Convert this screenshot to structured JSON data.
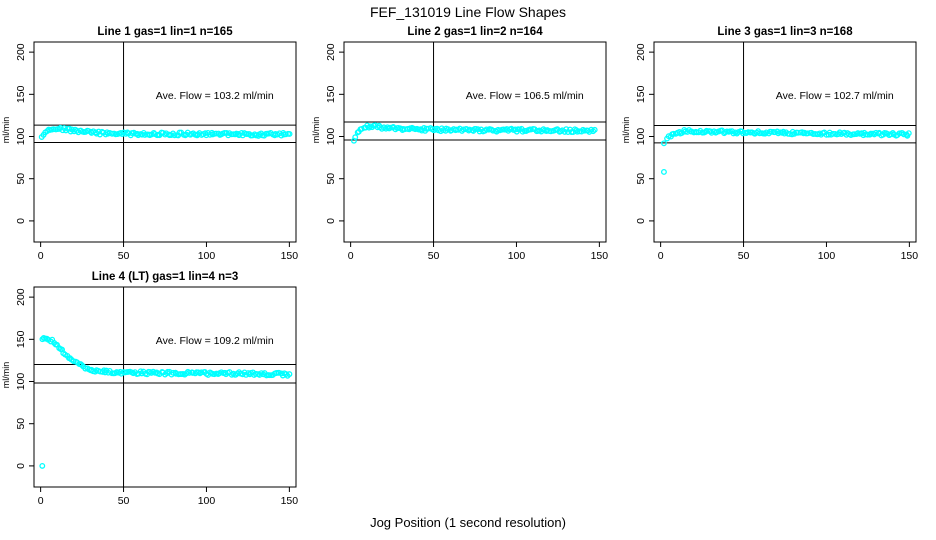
{
  "figure": {
    "title": "FEF_131019  Line Flow Shapes",
    "xlabel": "Jog Position (1 second resolution)",
    "marker_color": "#00ffff",
    "line_color": "#000000"
  },
  "chart_data": [
    {
      "type": "scatter",
      "title": "Line 1 gas=1 lin=1 n=165",
      "annotation": {
        "text": "Ave. Flow =  103.2  ml/min",
        "x": 105,
        "y": 148
      },
      "ave_flow": 103.2,
      "n": 165,
      "x_axis": {
        "ticks": [
          0,
          50,
          100,
          150
        ],
        "range": [
          -4,
          154
        ]
      },
      "y_axis": {
        "ticks": [
          0,
          50,
          100,
          150,
          200
        ],
        "range": [
          -25,
          212
        ],
        "label": "ml/min"
      },
      "vline_x": 50,
      "hlines": [
        113.5,
        92.9
      ],
      "series": {
        "x_start": 1,
        "x_end": 150,
        "profile": [
          [
            1,
            98
          ],
          [
            2,
            103
          ],
          [
            4,
            107.5
          ],
          [
            6,
            109.5
          ],
          [
            9,
            110
          ],
          [
            13,
            109
          ],
          [
            18,
            107.5
          ],
          [
            24,
            106
          ],
          [
            32,
            104.5
          ],
          [
            42,
            103.5
          ],
          [
            55,
            103
          ],
          [
            75,
            103
          ],
          [
            100,
            103
          ],
          [
            125,
            102.5
          ],
          [
            150,
            102.5
          ]
        ],
        "outliers": []
      }
    },
    {
      "type": "scatter",
      "title": "Line 2 gas=1 lin=2 n=164",
      "annotation": {
        "text": "Ave. Flow =  106.5  ml/min",
        "x": 105,
        "y": 148
      },
      "ave_flow": 106.5,
      "n": 164,
      "x_axis": {
        "ticks": [
          0,
          50,
          100,
          150
        ],
        "range": [
          -4,
          154
        ]
      },
      "y_axis": {
        "ticks": [
          0,
          50,
          100,
          150,
          200
        ],
        "range": [
          -25,
          212
        ],
        "label": "ml/min"
      },
      "vline_x": 50,
      "hlines": [
        117.2,
        95.9
      ],
      "series": {
        "x_start": 3,
        "x_end": 147,
        "profile": [
          [
            3,
            100
          ],
          [
            4,
            105
          ],
          [
            6,
            109
          ],
          [
            9,
            111.5
          ],
          [
            13,
            112
          ],
          [
            18,
            111
          ],
          [
            25,
            110
          ],
          [
            33,
            109
          ],
          [
            43,
            108.5
          ],
          [
            55,
            108
          ],
          [
            75,
            107.5
          ],
          [
            100,
            107.5
          ],
          [
            125,
            107
          ],
          [
            147,
            107
          ]
        ],
        "outliers": [
          [
            2,
            95
          ]
        ]
      }
    },
    {
      "type": "scatter",
      "title": "Line 3 gas=1 lin=3 n=168",
      "annotation": {
        "text": "Ave. Flow =  102.7  ml/min",
        "x": 105,
        "y": 148
      },
      "ave_flow": 102.7,
      "n": 168,
      "x_axis": {
        "ticks": [
          0,
          50,
          100,
          150
        ],
        "range": [
          -4,
          154
        ]
      },
      "y_axis": {
        "ticks": [
          0,
          50,
          100,
          150,
          200
        ],
        "range": [
          -25,
          212
        ],
        "label": "ml/min"
      },
      "vline_x": 50,
      "hlines": [
        113.0,
        92.4
      ],
      "series": {
        "x_start": 4,
        "x_end": 150,
        "profile": [
          [
            4,
            96
          ],
          [
            5,
            99
          ],
          [
            7,
            102
          ],
          [
            10,
            104.5
          ],
          [
            14,
            106
          ],
          [
            20,
            106.5
          ],
          [
            28,
            106
          ],
          [
            38,
            105.5
          ],
          [
            50,
            105
          ],
          [
            65,
            104.5
          ],
          [
            85,
            104
          ],
          [
            105,
            103.5
          ],
          [
            125,
            103
          ],
          [
            150,
            102.5
          ]
        ],
        "outliers": [
          [
            2,
            92
          ],
          [
            2,
            58
          ]
        ]
      }
    },
    {
      "type": "scatter",
      "title": "Line 4 (LT) gas=1 lin=4 n=3",
      "annotation": {
        "text": "Ave. Flow =  109.2  ml/min",
        "x": 105,
        "y": 148
      },
      "ave_flow": 109.2,
      "n": 3,
      "x_axis": {
        "ticks": [
          0,
          50,
          100,
          150
        ],
        "range": [
          -4,
          154
        ]
      },
      "y_axis": {
        "ticks": [
          0,
          50,
          100,
          150,
          200
        ],
        "range": [
          -25,
          212
        ],
        "label": "ml/min"
      },
      "vline_x": 50,
      "hlines": [
        120.1,
        98.3
      ],
      "series": {
        "x_start": 1,
        "x_end": 150,
        "profile": [
          [
            1,
            150
          ],
          [
            3,
            150.5
          ],
          [
            5,
            150
          ],
          [
            7,
            148
          ],
          [
            9,
            145
          ],
          [
            11,
            141
          ],
          [
            13,
            137
          ],
          [
            15,
            133
          ],
          [
            17,
            129
          ],
          [
            19,
            125.5
          ],
          [
            21,
            122.5
          ],
          [
            24,
            119
          ],
          [
            27,
            116
          ],
          [
            30,
            114
          ],
          [
            34,
            112.5
          ],
          [
            40,
            111.5
          ],
          [
            48,
            111
          ],
          [
            58,
            110.5
          ],
          [
            70,
            110
          ],
          [
            85,
            110
          ],
          [
            100,
            109.5
          ],
          [
            115,
            109.5
          ],
          [
            130,
            109
          ],
          [
            150,
            108.5
          ]
        ],
        "outliers": [
          [
            1,
            0
          ]
        ]
      }
    }
  ]
}
